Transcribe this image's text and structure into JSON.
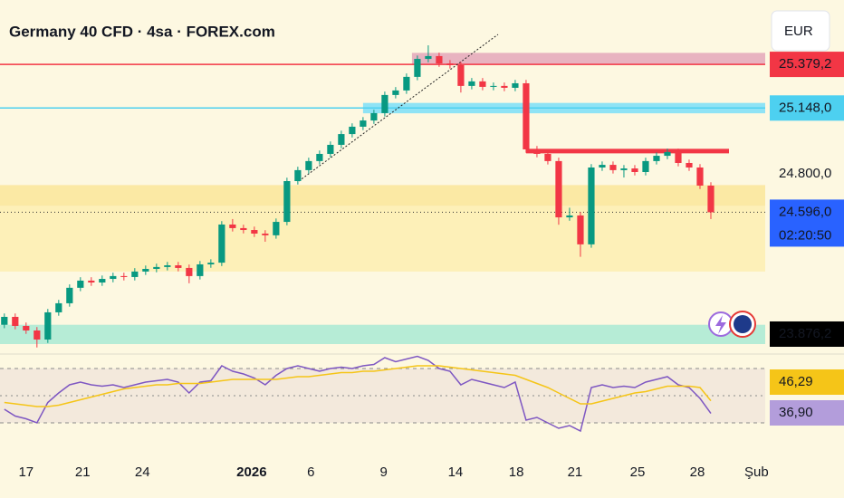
{
  "chart_data": {
    "type": "candlestick",
    "title": "Germany 40 CFD · 4sa · FOREX.com",
    "currency": "EUR",
    "countdown": "02:20:50",
    "ylim": [
      23850,
      25720
    ],
    "xlim": [
      -0.4,
      70
    ],
    "up_color": "#089981",
    "down_color": "#f23645",
    "candles": [
      [
        24000,
        24060,
        23982,
        24042
      ],
      [
        24042,
        24060,
        23976,
        23994
      ],
      [
        23994,
        24012,
        23952,
        23970
      ],
      [
        23970,
        23988,
        23880,
        23922
      ],
      [
        23922,
        24084,
        23904,
        24066
      ],
      [
        24066,
        24132,
        24048,
        24114
      ],
      [
        24114,
        24214,
        24096,
        24196
      ],
      [
        24196,
        24252,
        24178,
        24234
      ],
      [
        24234,
        24252,
        24206,
        24224
      ],
      [
        24224,
        24261,
        24206,
        24243
      ],
      [
        24243,
        24276,
        24225,
        24258
      ],
      [
        24258,
        24276,
        24235,
        24253
      ],
      [
        24253,
        24300,
        24235,
        24282
      ],
      [
        24282,
        24314,
        24264,
        24296
      ],
      [
        24296,
        24324,
        24278,
        24306
      ],
      [
        24306,
        24333,
        24288,
        24315
      ],
      [
        24315,
        24333,
        24283,
        24301
      ],
      [
        24301,
        24319,
        24220,
        24258
      ],
      [
        24258,
        24338,
        24240,
        24320
      ],
      [
        24320,
        24347,
        24302,
        24329
      ],
      [
        24329,
        24549,
        24311,
        24531
      ],
      [
        24531,
        24560,
        24494,
        24512
      ],
      [
        24512,
        24530,
        24484,
        24502
      ],
      [
        24502,
        24520,
        24465,
        24483
      ],
      [
        24483,
        24501,
        24440,
        24474
      ],
      [
        24474,
        24563,
        24456,
        24545
      ],
      [
        24545,
        24779,
        24527,
        24761
      ],
      [
        24761,
        24837,
        24743,
        24819
      ],
      [
        24819,
        24885,
        24801,
        24867
      ],
      [
        24867,
        24923,
        24849,
        24905
      ],
      [
        24905,
        24971,
        24887,
        24953
      ],
      [
        24953,
        25028,
        24935,
        25010
      ],
      [
        25010,
        25067,
        24992,
        25049
      ],
      [
        25049,
        25100,
        25031,
        25082
      ],
      [
        25082,
        25139,
        25064,
        25121
      ],
      [
        25121,
        25235,
        25103,
        25217
      ],
      [
        25217,
        25259,
        25199,
        25241
      ],
      [
        25241,
        25331,
        25223,
        25313
      ],
      [
        25313,
        25426,
        25295,
        25408
      ],
      [
        25408,
        25480,
        25390,
        25423
      ],
      [
        25423,
        25441,
        25366,
        25384
      ],
      [
        25384,
        25402,
        25357,
        25375
      ],
      [
        25375,
        25393,
        25230,
        25265
      ],
      [
        25265,
        25307,
        25247,
        25289
      ],
      [
        25289,
        25307,
        25242,
        25260
      ],
      [
        25260,
        25283,
        25242,
        25265
      ],
      [
        25265,
        25283,
        25237,
        25255
      ],
      [
        25255,
        25297,
        25237,
        25279
      ],
      [
        25279,
        25297,
        24911,
        24929
      ],
      [
        24929,
        24947,
        24887,
        24905
      ],
      [
        24905,
        24923,
        24849,
        24867
      ],
      [
        24867,
        24885,
        24530,
        24569
      ],
      [
        24569,
        24620,
        24551,
        24579
      ],
      [
        24579,
        24597,
        24360,
        24426
      ],
      [
        24426,
        24851,
        24408,
        24833
      ],
      [
        24833,
        24865,
        24815,
        24847
      ],
      [
        24847,
        24865,
        24801,
        24819
      ],
      [
        24819,
        24846,
        24780,
        24828
      ],
      [
        24828,
        24846,
        24791,
        24809
      ],
      [
        24809,
        24885,
        24791,
        24867
      ],
      [
        24867,
        24913,
        24849,
        24895
      ],
      [
        24895,
        24933,
        24877,
        24915
      ],
      [
        24915,
        24933,
        24839,
        24857
      ],
      [
        24857,
        24875,
        24815,
        24833
      ],
      [
        24833,
        24851,
        24719,
        24737
      ],
      [
        24737,
        24755,
        24560,
        24596
      ]
    ],
    "zones": [
      {
        "low": 24282,
        "high": 24630,
        "color": "#fdf0b8",
        "start": -0.4
      },
      {
        "low": 24630,
        "high": 24740,
        "color": "#fbe9a4",
        "start": -0.4
      },
      {
        "low": 25379,
        "high": 25440,
        "color": "#e8b3c0",
        "start": 37.5
      },
      {
        "low": 25120,
        "high": 25175,
        "color": "#8fe3f5",
        "start": 33
      },
      {
        "low": 23898,
        "high": 24000,
        "color": "#b6ecd6",
        "start": -0.4
      }
    ],
    "levels": [
      {
        "value": 24920,
        "color": "#f23645",
        "start": 48
      }
    ],
    "price_labels": [
      {
        "value": 25379.2,
        "label": "25.379,2",
        "color": "#f23645",
        "line": "solid"
      },
      {
        "value": 25148.0,
        "label": "25.148,0",
        "color": "#4dd0f0",
        "line": "solid"
      },
      {
        "value": 24800.0,
        "label": "24.800,0"
      },
      {
        "value": 24596.0,
        "label": "24.596,0",
        "color": "#2962ff",
        "line": "dotted"
      },
      {
        "value": 23876.2,
        "label": "23.876,2",
        "color": "#000000"
      }
    ],
    "xticks": [
      {
        "value": 2,
        "label": "17"
      },
      {
        "value": 7.2,
        "label": "21"
      },
      {
        "value": 12.7,
        "label": "24"
      },
      {
        "value": 22.75,
        "label": "2026"
      },
      {
        "value": 28.2,
        "label": "6"
      },
      {
        "value": 34.9,
        "label": "9"
      },
      {
        "value": 41.5,
        "label": "14"
      },
      {
        "value": 47.1,
        "label": "18"
      },
      {
        "value": 52.5,
        "label": "21"
      },
      {
        "value": 58.25,
        "label": "25"
      },
      {
        "value": 63.75,
        "label": "28"
      },
      {
        "value": 69.2,
        "label": "Şub"
      }
    ],
    "rsi": {
      "ylim": [
        20,
        80
      ],
      "levels": [
        70,
        50,
        30
      ],
      "series": [
        {
          "color": "#7e57c2",
          "values": [
            40,
            35,
            33,
            30,
            45,
            52,
            58,
            60,
            58,
            57,
            58,
            56,
            58,
            60,
            61,
            62,
            60,
            52,
            60,
            61,
            72,
            68,
            66,
            63,
            58,
            65,
            70,
            72,
            70,
            68,
            70,
            71,
            70,
            72,
            73,
            78,
            75,
            77,
            79,
            76,
            70,
            68,
            58,
            62,
            60,
            58,
            56,
            60,
            32,
            34,
            30,
            26,
            28,
            24,
            56,
            58,
            56,
            57,
            56,
            60,
            62,
            64,
            58,
            56,
            48,
            36.9
          ]
        },
        {
          "color": "#f5c518",
          "values": [
            45,
            44,
            43,
            42,
            42,
            43,
            45,
            47,
            49,
            51,
            53,
            55,
            56,
            57,
            58,
            58,
            59,
            59,
            59,
            60,
            61,
            62,
            62,
            62,
            62,
            62,
            63,
            64,
            64,
            65,
            66,
            67,
            67,
            68,
            68,
            69,
            70,
            71,
            72,
            72,
            72,
            71,
            70,
            69,
            68,
            67,
            66,
            65,
            62,
            59,
            56,
            52,
            48,
            44,
            44,
            46,
            48,
            50,
            52,
            53,
            55,
            57,
            57,
            57,
            56,
            46.29
          ]
        }
      ],
      "labels": [
        {
          "value": 46.29,
          "label": "46,29",
          "color": "#f5c518"
        },
        {
          "value": 36.9,
          "label": "36,90",
          "color": "#b39ddb"
        }
      ]
    }
  }
}
